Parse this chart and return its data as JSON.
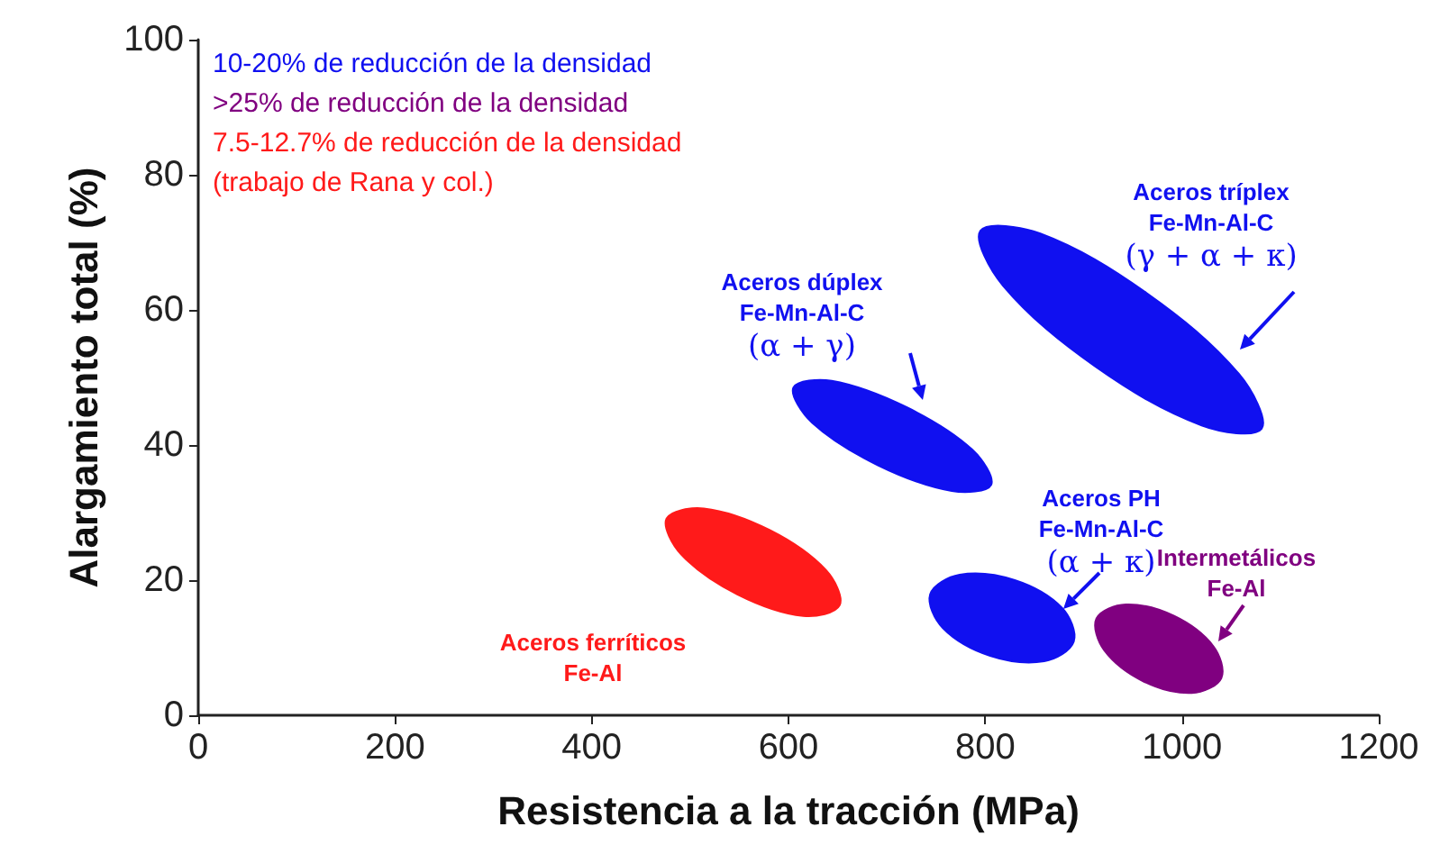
{
  "chart_data": {
    "type": "area",
    "xlabel": "Resistencia a la tracción (MPa)",
    "ylabel": "Alargamiento total (%)",
    "xlim": [
      0,
      1200
    ],
    "xticks": [
      0,
      200,
      400,
      600,
      800,
      1000,
      1200
    ],
    "ylim": [
      0,
      100
    ],
    "yticks": [
      0,
      20,
      40,
      60,
      80,
      100
    ],
    "grid": false,
    "legend": false,
    "annotations": [
      "10-20% de reducción de la densidad",
      ">25% de reducción de la densidad",
      "7.5-12.7% de reducción de la densidad",
      "(trabajo de Rana y col.)"
    ],
    "series": [
      {
        "name": "Aceros ferríticos\nFe-Al",
        "color": "#ff1a1a",
        "x": [
          652,
          615,
          548,
          491,
          476,
          514,
          581,
          638
        ],
        "values": [
          16.3,
          14.7,
          17.9,
          23.8,
          29.1,
          30.6,
          27.4,
          21.5
        ]
      },
      {
        "name": "Aceros dúplex\nFe-Mn-Al-C\n(α + γ)",
        "color": "#1010f0",
        "x": [
          806,
          766,
          691,
          624,
          605,
          644,
          720,
          787
        ],
        "values": [
          34.1,
          33.2,
          37.0,
          43.3,
          48.5,
          49.5,
          45.6,
          39.3
        ]
      },
      {
        "name": "Aceros tríplex\nFe-Mn-Al-C\n(γ + α + κ)",
        "color": "#1010f0",
        "x": [
          1081,
          1020,
          912,
          818,
          795,
          856,
          964,
          1058
        ],
        "values": [
          42.4,
          42.9,
          51.6,
          63.6,
          71.7,
          71.3,
          62.5,
          50.5
        ]
      },
      {
        "name": "Aceros PH\nFe-Mn-Al-C\n(α + κ)",
        "color": "#1010f0",
        "x": [
          890,
          860,
          805,
          757,
          744,
          774,
          830,
          878
        ],
        "values": [
          10.9,
          8.0,
          8.8,
          12.9,
          17.9,
          20.8,
          20.0,
          15.9
        ]
      },
      {
        "name": "Intermetálicos\nFe-Al",
        "color": "#800080",
        "x": [
          1040,
          1010,
          961,
          921,
          913,
          943,
          992,
          1032
        ],
        "values": [
          5.5,
          3.3,
          5.0,
          9.6,
          14.3,
          16.4,
          14.7,
          10.2
        ]
      }
    ]
  }
}
